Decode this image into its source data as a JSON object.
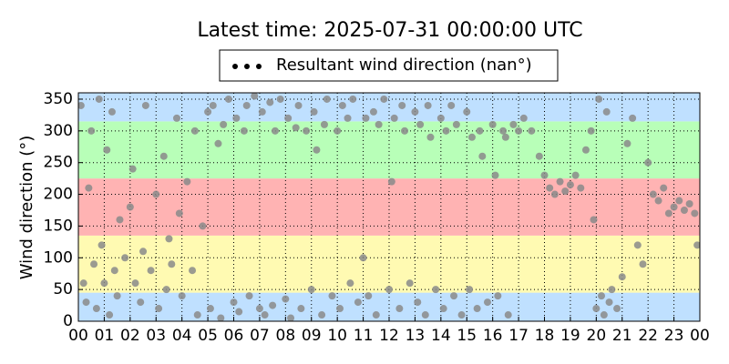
{
  "chart_data": {
    "type": "scatter",
    "title": "Latest time: 2025-07-31 00:00:00 UTC",
    "y_label": "Wind direction (°)",
    "series": [
      {
        "name": "Resultant wind direction (nan°)",
        "color": "#8a8a8a",
        "legend_color": "#000000",
        "x": [
          0.1,
          0.2,
          0.3,
          0.4,
          0.5,
          0.6,
          0.7,
          0.8,
          0.9,
          1.0,
          1.1,
          1.2,
          1.3,
          1.4,
          1.5,
          1.6,
          1.8,
          2.0,
          2.1,
          2.2,
          2.4,
          2.5,
          2.6,
          2.8,
          3.0,
          3.1,
          3.3,
          3.4,
          3.5,
          3.6,
          3.8,
          3.9,
          4.0,
          4.2,
          4.4,
          4.5,
          4.6,
          4.8,
          5.0,
          5.1,
          5.2,
          5.4,
          5.5,
          5.6,
          5.8,
          6.0,
          6.1,
          6.2,
          6.4,
          6.5,
          6.6,
          6.8,
          7.0,
          7.1,
          7.2,
          7.4,
          7.5,
          7.6,
          7.8,
          8.0,
          8.1,
          8.2,
          8.4,
          8.5,
          8.6,
          8.8,
          9.0,
          9.1,
          9.2,
          9.4,
          9.5,
          9.6,
          9.8,
          10.0,
          10.1,
          10.2,
          10.4,
          10.5,
          10.6,
          10.8,
          11.0,
          11.1,
          11.2,
          11.4,
          11.5,
          11.6,
          11.8,
          12.0,
          12.1,
          12.2,
          12.4,
          12.5,
          12.6,
          12.8,
          13.0,
          13.1,
          13.2,
          13.4,
          13.5,
          13.6,
          13.8,
          14.0,
          14.1,
          14.2,
          14.4,
          14.5,
          14.6,
          14.8,
          15.0,
          15.1,
          15.2,
          15.4,
          15.5,
          15.6,
          15.8,
          16.0,
          16.1,
          16.2,
          16.4,
          16.5,
          16.6,
          16.8,
          17.0,
          17.2,
          17.5,
          17.8,
          18.0,
          18.2,
          18.4,
          18.6,
          18.8,
          19.0,
          19.2,
          19.4,
          19.6,
          19.8,
          19.9,
          20.0,
          20.1,
          20.2,
          20.3,
          20.4,
          20.5,
          20.6,
          20.8,
          21.0,
          21.2,
          21.4,
          21.6,
          21.8,
          22.0,
          22.2,
          22.4,
          22.6,
          22.8,
          23.0,
          23.2,
          23.4,
          23.6,
          23.8,
          23.9
        ],
        "values": [
          340,
          60,
          30,
          210,
          300,
          90,
          20,
          350,
          120,
          60,
          270,
          10,
          330,
          80,
          40,
          160,
          100,
          180,
          240,
          60,
          30,
          110,
          340,
          80,
          200,
          20,
          260,
          50,
          130,
          90,
          320,
          170,
          40,
          220,
          80,
          300,
          10,
          150,
          330,
          20,
          340,
          280,
          5,
          310,
          350,
          30,
          320,
          15,
          300,
          340,
          40,
          355,
          20,
          330,
          10,
          345,
          25,
          300,
          350,
          35,
          320,
          5,
          305,
          340,
          20,
          300,
          50,
          330,
          270,
          10,
          310,
          350,
          40,
          300,
          20,
          340,
          320,
          60,
          350,
          30,
          100,
          320,
          40,
          330,
          10,
          310,
          350,
          50,
          220,
          320,
          20,
          340,
          300,
          60,
          330,
          30,
          310,
          10,
          340,
          290,
          50,
          320,
          20,
          300,
          340,
          40,
          310,
          10,
          330,
          50,
          290,
          20,
          300,
          260,
          30,
          310,
          230,
          40,
          300,
          290,
          10,
          310,
          300,
          320,
          300,
          260,
          230,
          210,
          200,
          220,
          205,
          215,
          230,
          210,
          270,
          300,
          160,
          20,
          350,
          40,
          10,
          330,
          30,
          50,
          20,
          70,
          280,
          320,
          120,
          90,
          250,
          200,
          190,
          210,
          170,
          180,
          190,
          175,
          185,
          170,
          120
        ]
      }
    ],
    "bands": [
      {
        "from": 0,
        "to": 45,
        "color": "#bfe0ff"
      },
      {
        "from": 45,
        "to": 135,
        "color": "#fffab2"
      },
      {
        "from": 135,
        "to": 225,
        "color": "#ffb3b3"
      },
      {
        "from": 225,
        "to": 315,
        "color": "#b8ffb8"
      },
      {
        "from": 315,
        "to": 360,
        "color": "#bfe0ff"
      }
    ],
    "xlim": [
      0,
      24
    ],
    "xticks": [
      {
        "value": 0,
        "label": "00"
      },
      {
        "value": 1,
        "label": "01"
      },
      {
        "value": 2,
        "label": "02"
      },
      {
        "value": 3,
        "label": "03"
      },
      {
        "value": 4,
        "label": "04"
      },
      {
        "value": 5,
        "label": "05"
      },
      {
        "value": 6,
        "label": "06"
      },
      {
        "value": 7,
        "label": "07"
      },
      {
        "value": 8,
        "label": "08"
      },
      {
        "value": 9,
        "label": "09"
      },
      {
        "value": 10,
        "label": "10"
      },
      {
        "value": 11,
        "label": "11"
      },
      {
        "value": 12,
        "label": "12"
      },
      {
        "value": 13,
        "label": "13"
      },
      {
        "value": 14,
        "label": "14"
      },
      {
        "value": 15,
        "label": "15"
      },
      {
        "value": 16,
        "label": "16"
      },
      {
        "value": 17,
        "label": "17"
      },
      {
        "value": 18,
        "label": "18"
      },
      {
        "value": 19,
        "label": "19"
      },
      {
        "value": 20,
        "label": "20"
      },
      {
        "value": 21,
        "label": "21"
      },
      {
        "value": 22,
        "label": "22"
      },
      {
        "value": 23,
        "label": "23"
      },
      {
        "value": 24,
        "label": "00"
      }
    ],
    "ylim": [
      0,
      360
    ],
    "yticks": [
      0,
      50,
      100,
      150,
      200,
      250,
      300,
      350
    ],
    "grid": true
  }
}
